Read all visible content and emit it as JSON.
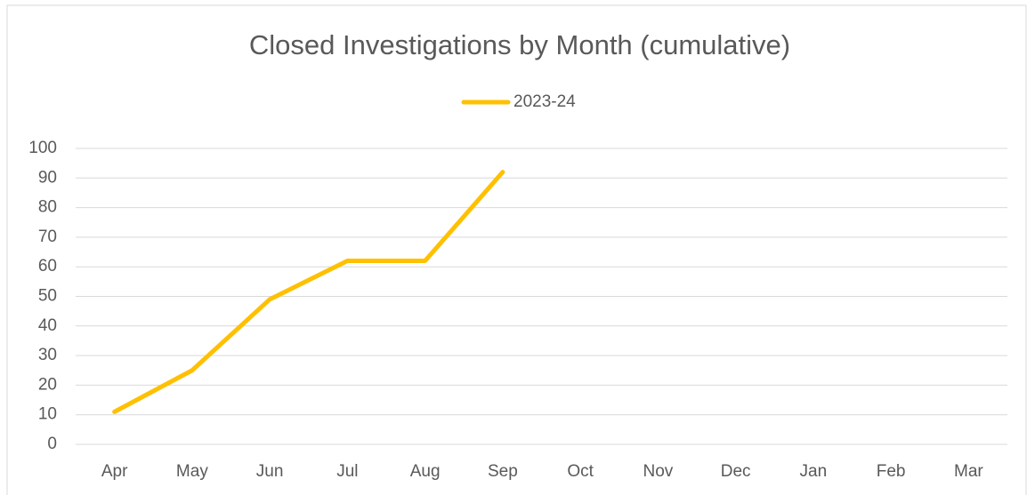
{
  "chart_data": {
    "type": "line",
    "title": "Closed Investigations by Month (cumulative)",
    "categories": [
      "Apr",
      "May",
      "Jun",
      "Jul",
      "Aug",
      "Sep",
      "Oct",
      "Nov",
      "Dec",
      "Jan",
      "Feb",
      "Mar"
    ],
    "series": [
      {
        "name": "2023-24",
        "color": "#ffc000",
        "values": [
          11,
          25,
          49,
          62,
          62,
          92,
          null,
          null,
          null,
          null,
          null,
          null
        ]
      }
    ],
    "ylim": [
      0,
      100
    ],
    "yticks": [
      0,
      10,
      20,
      30,
      40,
      50,
      60,
      70,
      80,
      90,
      100
    ],
    "grid": true,
    "legend": "top"
  }
}
